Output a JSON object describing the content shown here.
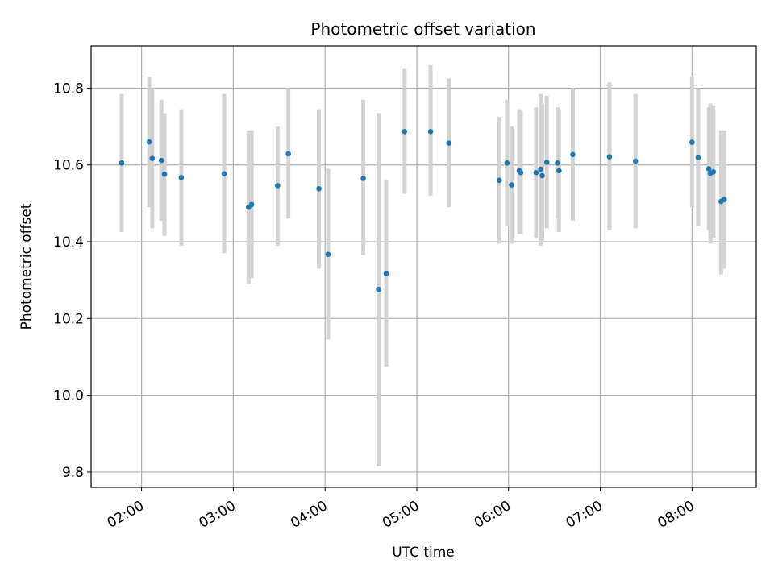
{
  "chart_data": {
    "type": "scatter",
    "title": "Photometric offset variation",
    "xlabel": "UTC time",
    "ylabel": "Photometric offset",
    "x_unit": "hours (UTC)",
    "xlim": [
      1.45,
      8.7
    ],
    "ylim": [
      9.76,
      10.91
    ],
    "x_ticks": [
      {
        "value": 2,
        "label": "02:00"
      },
      {
        "value": 3,
        "label": "03:00"
      },
      {
        "value": 4,
        "label": "04:00"
      },
      {
        "value": 5,
        "label": "05:00"
      },
      {
        "value": 6,
        "label": "06:00"
      },
      {
        "value": 7,
        "label": "07:00"
      },
      {
        "value": 8,
        "label": "08:00"
      }
    ],
    "y_ticks": [
      {
        "value": 9.8,
        "label": "9.8"
      },
      {
        "value": 10.0,
        "label": "10.0"
      },
      {
        "value": 10.2,
        "label": "10.2"
      },
      {
        "value": 10.4,
        "label": "10.4"
      },
      {
        "value": 10.6,
        "label": "10.6"
      },
      {
        "value": 10.8,
        "label": "10.8"
      }
    ],
    "grid": true,
    "marker_color": "#1f77b4",
    "errorbar_color": "#d3d3d3",
    "series": [
      {
        "points": [
          {
            "x": "01:47",
            "y": 10.605,
            "ylo": 10.425,
            "yhi": 10.785
          },
          {
            "x": "02:05",
            "y": 10.66,
            "ylo": 10.49,
            "yhi": 10.83
          },
          {
            "x": "02:07",
            "y": 10.617,
            "ylo": 10.435,
            "yhi": 10.8
          },
          {
            "x": "02:13",
            "y": 10.612,
            "ylo": 10.455,
            "yhi": 10.77
          },
          {
            "x": "02:15",
            "y": 10.576,
            "ylo": 10.415,
            "yhi": 10.735
          },
          {
            "x": "02:26",
            "y": 10.567,
            "ylo": 10.39,
            "yhi": 10.745
          },
          {
            "x": "02:54",
            "y": 10.577,
            "ylo": 10.37,
            "yhi": 10.785
          },
          {
            "x": "03:10",
            "y": 10.49,
            "ylo": 10.29,
            "yhi": 10.69
          },
          {
            "x": "03:12",
            "y": 10.497,
            "ylo": 10.305,
            "yhi": 10.69
          },
          {
            "x": "03:29",
            "y": 10.546,
            "ylo": 10.39,
            "yhi": 10.7
          },
          {
            "x": "03:36",
            "y": 10.629,
            "ylo": 10.46,
            "yhi": 10.8
          },
          {
            "x": "03:56",
            "y": 10.538,
            "ylo": 10.33,
            "yhi": 10.745
          },
          {
            "x": "04:02",
            "y": 10.367,
            "ylo": 10.145,
            "yhi": 10.59
          },
          {
            "x": "04:25",
            "y": 10.565,
            "ylo": 10.365,
            "yhi": 10.77
          },
          {
            "x": "04:35",
            "y": 10.276,
            "ylo": 9.815,
            "yhi": 10.735
          },
          {
            "x": "04:40",
            "y": 10.317,
            "ylo": 10.075,
            "yhi": 10.56
          },
          {
            "x": "04:52",
            "y": 10.687,
            "ylo": 10.525,
            "yhi": 10.85
          },
          {
            "x": "05:09",
            "y": 10.687,
            "ylo": 10.52,
            "yhi": 10.86
          },
          {
            "x": "05:21",
            "y": 10.657,
            "ylo": 10.49,
            "yhi": 10.825
          },
          {
            "x": "05:54",
            "y": 10.56,
            "ylo": 10.395,
            "yhi": 10.725
          },
          {
            "x": "05:59",
            "y": 10.605,
            "ylo": 10.44,
            "yhi": 10.77
          },
          {
            "x": "06:02",
            "y": 10.548,
            "ylo": 10.395,
            "yhi": 10.7
          },
          {
            "x": "06:07",
            "y": 10.585,
            "ylo": 10.42,
            "yhi": 10.745
          },
          {
            "x": "06:08",
            "y": 10.58,
            "ylo": 10.42,
            "yhi": 10.74
          },
          {
            "x": "06:18",
            "y": 10.58,
            "ylo": 10.41,
            "yhi": 10.75
          },
          {
            "x": "06:21",
            "y": 10.589,
            "ylo": 10.39,
            "yhi": 10.785
          },
          {
            "x": "06:22",
            "y": 10.572,
            "ylo": 10.4,
            "yhi": 10.76
          },
          {
            "x": "06:25",
            "y": 10.607,
            "ylo": 10.435,
            "yhi": 10.78
          },
          {
            "x": "06:32",
            "y": 10.605,
            "ylo": 10.46,
            "yhi": 10.75
          },
          {
            "x": "06:33",
            "y": 10.585,
            "ylo": 10.425,
            "yhi": 10.745
          },
          {
            "x": "06:42",
            "y": 10.627,
            "ylo": 10.455,
            "yhi": 10.8
          },
          {
            "x": "07:06",
            "y": 10.621,
            "ylo": 10.43,
            "yhi": 10.815
          },
          {
            "x": "07:23",
            "y": 10.61,
            "ylo": 10.435,
            "yhi": 10.785
          },
          {
            "x": "08:00",
            "y": 10.659,
            "ylo": 10.49,
            "yhi": 10.83
          },
          {
            "x": "08:04",
            "y": 10.619,
            "ylo": 10.44,
            "yhi": 10.8
          },
          {
            "x": "08:11",
            "y": 10.59,
            "ylo": 10.43,
            "yhi": 10.75
          },
          {
            "x": "08:12",
            "y": 10.578,
            "ylo": 10.395,
            "yhi": 10.76
          },
          {
            "x": "08:14",
            "y": 10.582,
            "ylo": 10.41,
            "yhi": 10.755
          },
          {
            "x": "08:19",
            "y": 10.505,
            "ylo": 10.315,
            "yhi": 10.69
          },
          {
            "x": "08:21",
            "y": 10.51,
            "ylo": 10.33,
            "yhi": 10.69
          }
        ]
      }
    ]
  }
}
